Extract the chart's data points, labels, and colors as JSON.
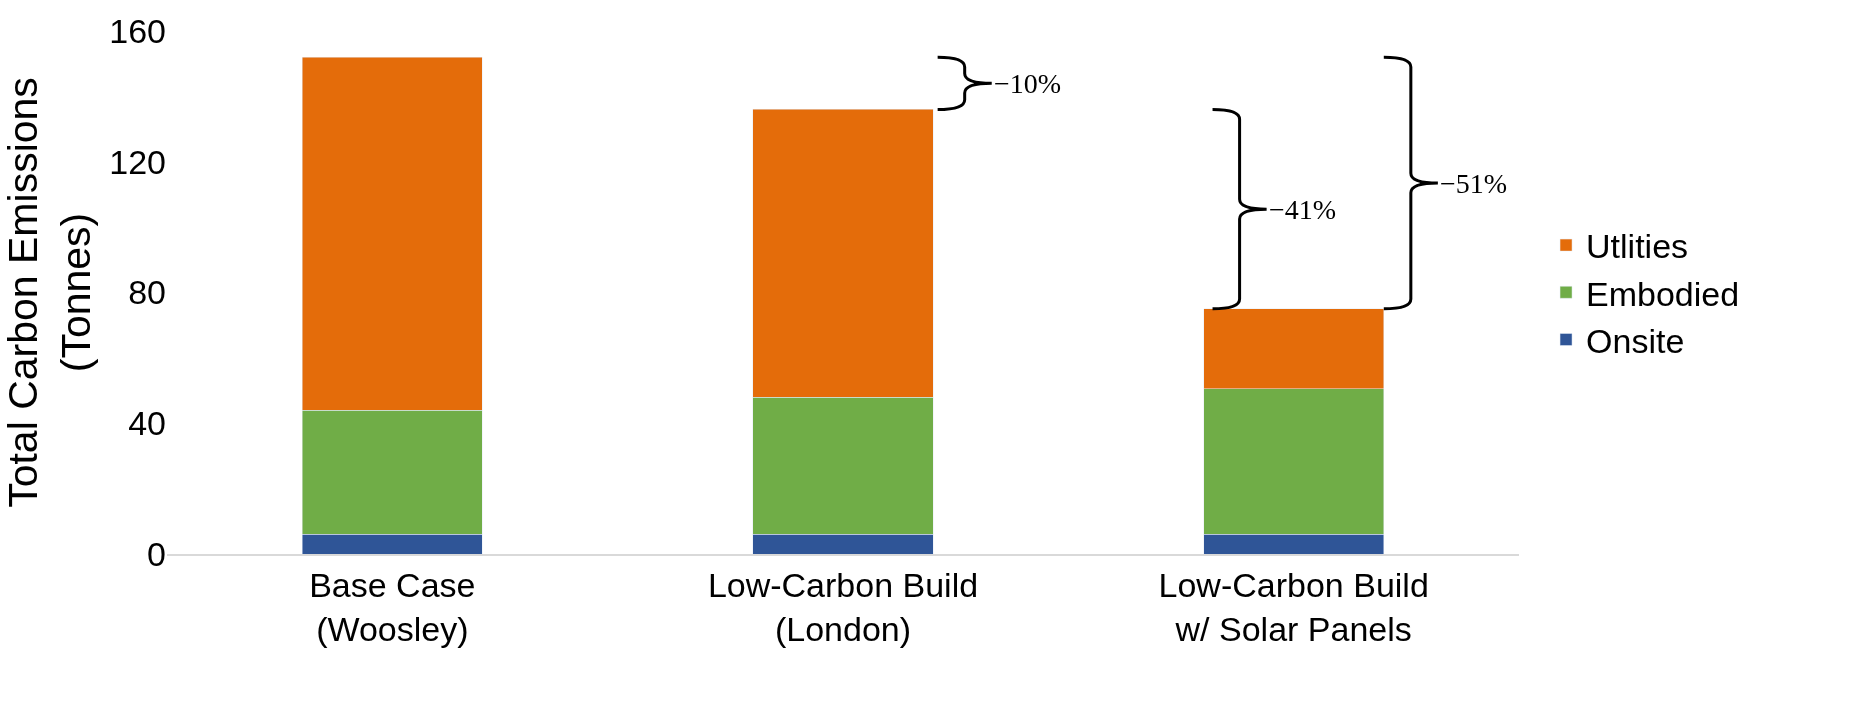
{
  "chart_data": {
    "type": "bar",
    "stacked": true,
    "ylabel": "Total Carbon Emissions (Tonnes)",
    "categories": [
      "Base Case (Woosley)",
      "Low-Carbon Build (London)",
      "Low-Carbon Build w/ Solar Panels"
    ],
    "series": [
      {
        "name": "Onsite",
        "color": "#2f5597",
        "values": [
          6,
          6,
          6
        ]
      },
      {
        "name": "Embodied",
        "color": "#70ad47",
        "values": [
          38,
          42,
          44.5
        ]
      },
      {
        "name": "Utlities",
        "color": "#e46c0a",
        "values": [
          108,
          88,
          24.5
        ]
      }
    ],
    "ylim": [
      0,
      160
    ],
    "yticks": [
      0,
      40,
      80,
      120,
      160
    ],
    "legend": "right",
    "annotations": [
      "−10%",
      "−41%",
      "−51%"
    ]
  }
}
